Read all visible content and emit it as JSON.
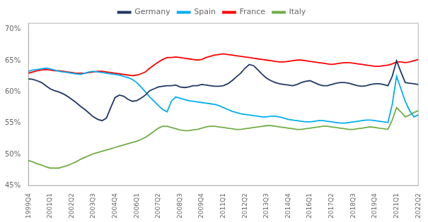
{
  "chart_data": {
    "type": "line",
    "categories": [
      "1999Q4",
      null,
      null,
      null,
      null,
      "2001Q1",
      null,
      null,
      null,
      null,
      "2002Q2",
      null,
      null,
      null,
      null,
      "2003Q3",
      null,
      null,
      null,
      null,
      "2004Q4",
      null,
      null,
      null,
      null,
      "2006Q1",
      null,
      null,
      null,
      null,
      "2007Q2",
      null,
      null,
      null,
      null,
      "2008Q3",
      null,
      null,
      null,
      null,
      "2009Q4",
      null,
      null,
      null,
      null,
      "2011Q1",
      null,
      null,
      null,
      null,
      "2012Q2",
      null,
      null,
      null,
      null,
      "2013Q3",
      null,
      null,
      null,
      null,
      "2014Q4",
      null,
      null,
      null,
      null,
      "2016Q1",
      null,
      null,
      null,
      null,
      "2017Q2",
      null,
      null,
      null,
      null,
      "2018Q3",
      null,
      null,
      null,
      null,
      "2019Q4",
      null,
      null,
      null,
      null,
      "2021Q1",
      null,
      null,
      null,
      null,
      "2022Q2"
    ],
    "series": [
      {
        "name": "Germany",
        "color": "#1F3864",
        "values": [
          62.1,
          62.0,
          61.8,
          61.5,
          61.0,
          60.5,
          60.2,
          60.0,
          59.7,
          59.3,
          58.8,
          58.3,
          57.7,
          57.2,
          56.6,
          56.0,
          55.6,
          55.4,
          55.8,
          57.5,
          59.1,
          59.5,
          59.3,
          58.8,
          58.5,
          58.6,
          59.0,
          59.5,
          60.2,
          60.5,
          60.8,
          60.9,
          61.0,
          61.0,
          61.1,
          60.8,
          60.7,
          60.8,
          61.0,
          61.0,
          61.2,
          61.1,
          61.0,
          60.9,
          60.9,
          61.0,
          61.3,
          61.8,
          62.4,
          63.0,
          63.8,
          64.4,
          64.2,
          63.5,
          62.8,
          62.2,
          61.8,
          61.5,
          61.3,
          61.2,
          61.1,
          61.0,
          61.2,
          61.5,
          61.7,
          61.8,
          61.5,
          61.2,
          61.0,
          61.0,
          61.2,
          61.4,
          61.5,
          61.5,
          61.4,
          61.2,
          61.0,
          60.9,
          61.0,
          61.2,
          61.3,
          61.3,
          61.2,
          61.0,
          62.5,
          65.0,
          63.2,
          61.5,
          61.4,
          61.3,
          61.2
        ]
      },
      {
        "name": "Spain",
        "color": "#00AEEF",
        "values": [
          63.3,
          63.5,
          63.6,
          63.7,
          63.8,
          63.7,
          63.5,
          63.3,
          63.2,
          63.1,
          63.0,
          62.9,
          62.8,
          63.0,
          63.2,
          63.3,
          63.2,
          63.1,
          63.0,
          62.9,
          62.8,
          62.7,
          62.5,
          62.3,
          62.0,
          61.5,
          60.8,
          60.0,
          59.2,
          58.5,
          57.8,
          57.2,
          56.8,
          58.5,
          59.2,
          59.0,
          58.8,
          58.6,
          58.5,
          58.4,
          58.3,
          58.2,
          58.1,
          58.0,
          57.8,
          57.5,
          57.2,
          56.9,
          56.7,
          56.5,
          56.4,
          56.3,
          56.2,
          56.1,
          56.0,
          56.0,
          56.1,
          56.1,
          56.0,
          55.8,
          55.6,
          55.5,
          55.4,
          55.3,
          55.2,
          55.2,
          55.3,
          55.4,
          55.4,
          55.3,
          55.2,
          55.1,
          55.0,
          55.0,
          55.1,
          55.2,
          55.3,
          55.4,
          55.5,
          55.5,
          55.4,
          55.3,
          55.2,
          55.1,
          58.0,
          62.5,
          60.5,
          58.5,
          57.0,
          56.0,
          56.3
        ]
      },
      {
        "name": "France",
        "color": "#FF0000",
        "values": [
          63.0,
          63.2,
          63.4,
          63.5,
          63.6,
          63.5,
          63.4,
          63.4,
          63.3,
          63.2,
          63.1,
          63.0,
          63.0,
          63.0,
          63.1,
          63.2,
          63.3,
          63.3,
          63.2,
          63.1,
          63.0,
          62.9,
          62.8,
          62.7,
          62.6,
          62.7,
          62.9,
          63.2,
          63.8,
          64.3,
          64.8,
          65.2,
          65.5,
          65.5,
          65.6,
          65.5,
          65.4,
          65.3,
          65.2,
          65.1,
          65.2,
          65.5,
          65.7,
          65.9,
          66.0,
          66.1,
          66.0,
          65.9,
          65.8,
          65.7,
          65.6,
          65.5,
          65.4,
          65.3,
          65.2,
          65.1,
          65.0,
          64.9,
          64.8,
          64.8,
          64.9,
          65.0,
          65.1,
          65.1,
          65.0,
          64.9,
          64.8,
          64.7,
          64.6,
          64.5,
          64.4,
          64.5,
          64.6,
          64.7,
          64.7,
          64.6,
          64.5,
          64.4,
          64.3,
          64.2,
          64.1,
          64.1,
          64.2,
          64.3,
          64.5,
          64.8,
          64.8,
          64.7,
          64.8,
          65.0,
          65.2
        ]
      },
      {
        "name": "Italy",
        "color": "#70AD47",
        "values": [
          49.0,
          48.8,
          48.5,
          48.3,
          48.0,
          47.8,
          47.8,
          47.8,
          48.0,
          48.2,
          48.5,
          48.8,
          49.2,
          49.5,
          49.8,
          50.1,
          50.3,
          50.5,
          50.7,
          50.9,
          51.1,
          51.3,
          51.5,
          51.7,
          51.9,
          52.1,
          52.4,
          52.7,
          53.2,
          53.7,
          54.2,
          54.5,
          54.5,
          54.3,
          54.1,
          53.9,
          53.8,
          53.8,
          53.9,
          54.0,
          54.2,
          54.4,
          54.5,
          54.5,
          54.4,
          54.3,
          54.2,
          54.1,
          54.0,
          54.0,
          54.1,
          54.2,
          54.3,
          54.4,
          54.5,
          54.6,
          54.6,
          54.5,
          54.4,
          54.3,
          54.2,
          54.1,
          54.0,
          54.0,
          54.1,
          54.2,
          54.3,
          54.4,
          54.5,
          54.5,
          54.4,
          54.3,
          54.2,
          54.1,
          54.0,
          54.0,
          54.1,
          54.2,
          54.3,
          54.4,
          54.3,
          54.2,
          54.1,
          54.0,
          55.5,
          57.5,
          56.8,
          56.0,
          56.3,
          56.7,
          57.0
        ]
      }
    ],
    "ylim": [
      45,
      71
    ],
    "yticks": [
      {
        "value": 45,
        "label": "45%"
      },
      {
        "value": 50,
        "label": "50%"
      },
      {
        "value": 55,
        "label": "55%"
      },
      {
        "value": 60,
        "label": "60%"
      },
      {
        "value": 65,
        "label": "65%"
      },
      {
        "value": 70,
        "label": "70%"
      }
    ],
    "grid": false,
    "legend": "top"
  }
}
